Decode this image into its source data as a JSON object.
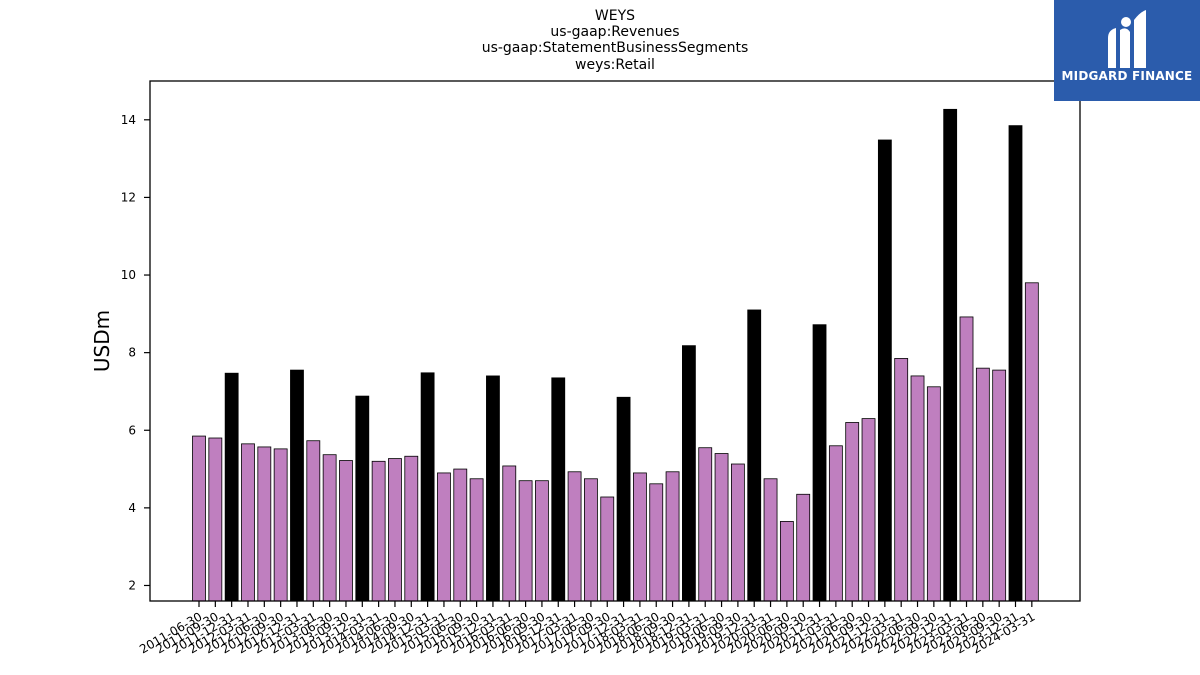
{
  "chart_data": {
    "type": "bar",
    "title_lines": [
      "WEYS",
      "us-gaap:Revenues",
      "us-gaap:StatementBusinessSegments",
      "weys:Retail"
    ],
    "xlabel": "",
    "ylabel": "USDm",
    "ylim": [
      1.6,
      15.0
    ],
    "yticks": [
      2,
      4,
      6,
      8,
      10,
      12,
      14
    ],
    "grid": false,
    "categories": [
      "2011-06-30",
      "2011-09-30",
      "2011-12-31",
      "2012-03-31",
      "2012-06-30",
      "2012-09-30",
      "2012-12-31",
      "2013-03-31",
      "2013-06-30",
      "2013-09-30",
      "2013-12-31",
      "2014-03-31",
      "2014-06-30",
      "2014-09-30",
      "2014-12-31",
      "2015-03-31",
      "2015-06-30",
      "2015-09-30",
      "2015-12-31",
      "2016-03-31",
      "2016-06-30",
      "2016-09-30",
      "2016-12-31",
      "2017-03-31",
      "2017-06-30",
      "2017-09-30",
      "2017-12-31",
      "2018-03-31",
      "2018-06-30",
      "2018-09-30",
      "2018-12-31",
      "2019-03-31",
      "2019-06-30",
      "2019-09-30",
      "2019-12-31",
      "2020-03-31",
      "2020-06-30",
      "2020-09-30",
      "2020-12-31",
      "2021-03-31",
      "2021-06-30",
      "2021-09-30",
      "2021-12-31",
      "2022-03-31",
      "2022-06-30",
      "2022-09-30",
      "2022-12-31",
      "2023-03-31",
      "2023-06-30",
      "2023-09-30",
      "2023-12-31",
      "2024-03-31"
    ],
    "values": [
      5.85,
      5.8,
      7.47,
      5.65,
      5.57,
      5.52,
      7.55,
      5.73,
      5.37,
      5.22,
      6.88,
      5.2,
      5.27,
      5.33,
      7.48,
      4.9,
      5.0,
      4.75,
      7.4,
      5.08,
      4.7,
      4.7,
      7.35,
      4.93,
      4.75,
      4.28,
      6.85,
      4.9,
      4.62,
      4.93,
      8.18,
      5.55,
      5.4,
      5.13,
      9.1,
      4.75,
      3.65,
      4.35,
      8.72,
      5.6,
      6.2,
      6.3,
      13.48,
      7.85,
      7.4,
      7.12,
      14.27,
      8.92,
      7.6,
      7.55,
      13.85,
      9.8
    ],
    "highlight_indices": [
      2,
      6,
      10,
      14,
      18,
      22,
      26,
      30,
      34,
      38,
      42,
      46,
      50
    ],
    "colors": {
      "normal": "#bf7fbf",
      "highlight": "#000000",
      "edge": "#000000"
    }
  },
  "logo": {
    "text": "MIDGARD FINANCE",
    "background": "#2b5cac"
  }
}
